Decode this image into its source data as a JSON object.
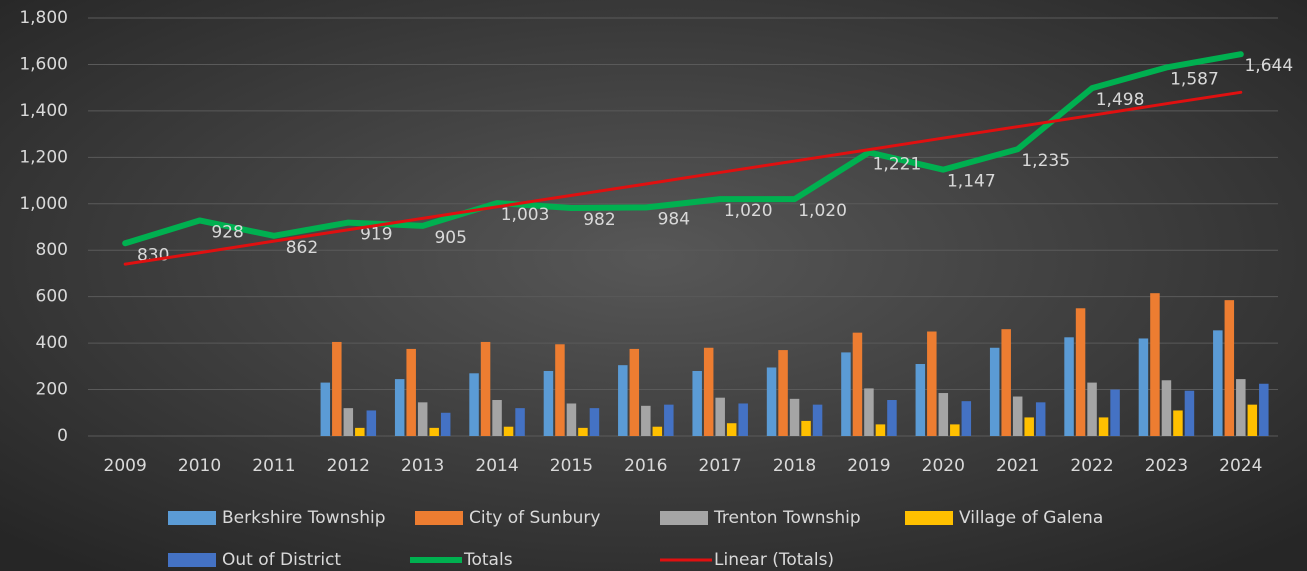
{
  "chart_data": {
    "type": "bar",
    "categories": [
      "2009",
      "2010",
      "2011",
      "2012",
      "2013",
      "2014",
      "2015",
      "2016",
      "2017",
      "2018",
      "2019",
      "2020",
      "2021",
      "2022",
      "2023",
      "2024"
    ],
    "ylim": [
      0,
      1800
    ],
    "yticks": [
      0,
      200,
      400,
      600,
      800,
      {
        "value": 1000,
        "label": "1,000"
      },
      {
        "value": 1200,
        "label": "1,200"
      },
      {
        "value": 1400,
        "label": "1,400"
      },
      {
        "value": 1600,
        "label": "1,600"
      },
      {
        "value": 1800,
        "label": "1,800"
      }
    ],
    "grid": true,
    "legend": "bottom",
    "series": [
      {
        "name": "Berkshire Township",
        "type": "bar",
        "color": "#5b9bd5",
        "values": [
          null,
          null,
          null,
          230,
          245,
          270,
          280,
          305,
          280,
          295,
          360,
          310,
          380,
          425,
          420,
          455
        ]
      },
      {
        "name": "City of Sunbury",
        "type": "bar",
        "color": "#ed7d31",
        "values": [
          null,
          null,
          null,
          405,
          375,
          405,
          395,
          375,
          380,
          370,
          445,
          450,
          460,
          550,
          615,
          585
        ]
      },
      {
        "name": "Trenton Township",
        "type": "bar",
        "color": "#a5a5a5",
        "values": [
          null,
          null,
          null,
          120,
          145,
          155,
          140,
          130,
          165,
          160,
          205,
          185,
          170,
          230,
          240,
          245
        ]
      },
      {
        "name": "Village of Galena",
        "type": "bar",
        "color": "#ffc000",
        "values": [
          null,
          null,
          null,
          35,
          35,
          40,
          35,
          40,
          55,
          65,
          50,
          50,
          80,
          80,
          110,
          135
        ]
      },
      {
        "name": "Out of District",
        "type": "bar",
        "color": "#4472c4",
        "values": [
          null,
          null,
          null,
          110,
          100,
          120,
          120,
          135,
          140,
          135,
          155,
          150,
          145,
          200,
          195,
          225
        ]
      },
      {
        "name": "Totals",
        "type": "line",
        "color": "#00b050",
        "values": [
          830,
          928,
          862,
          919,
          905,
          1003,
          982,
          984,
          1020,
          1020,
          1221,
          1147,
          1235,
          1498,
          1587,
          1644
        ],
        "value_labels": [
          "830",
          "928",
          "862",
          "919",
          "905",
          "1,003",
          "982",
          "984",
          "1,020",
          "1,020",
          "1,221",
          "1,147",
          "1,235",
          "1,498",
          "1,587",
          "1,644"
        ]
      },
      {
        "name": "Linear (Totals)",
        "type": "line",
        "color": "#e01010",
        "values": [
          740,
          789,
          839,
          888,
          937,
          987,
          1036,
          1085,
          1135,
          1184,
          1233,
          1283,
          1332,
          1381,
          1431,
          1480
        ]
      }
    ]
  }
}
